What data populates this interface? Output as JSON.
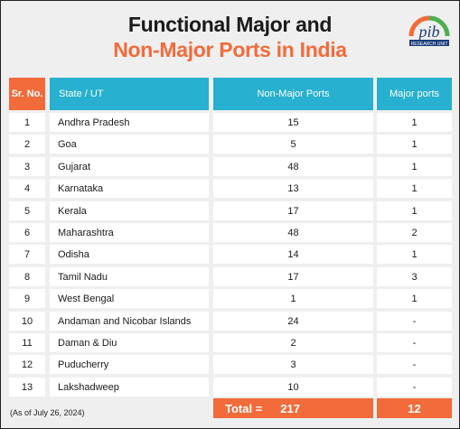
{
  "title": {
    "line1": "Functional Major and",
    "line2": "Non-Major Ports in India"
  },
  "logo": {
    "text": "pib",
    "subtext": "RESEARCH UNIT"
  },
  "table": {
    "headers": {
      "sr": "Sr. No.",
      "state": "State / UT",
      "non_major": "Non-Major Ports",
      "major": "Major ports"
    },
    "rows": [
      {
        "sr": "1",
        "state": "Andhra Pradesh",
        "non_major": "15",
        "major": "1"
      },
      {
        "sr": "2",
        "state": "Goa",
        "non_major": "5",
        "major": "1"
      },
      {
        "sr": "3",
        "state": "Gujarat",
        "non_major": "48",
        "major": "1"
      },
      {
        "sr": "4",
        "state": "Karnataka",
        "non_major": "13",
        "major": "1"
      },
      {
        "sr": "5",
        "state": "Kerala",
        "non_major": "17",
        "major": "1"
      },
      {
        "sr": "6",
        "state": "Maharashtra",
        "non_major": "48",
        "major": "2"
      },
      {
        "sr": "7",
        "state": "Odisha",
        "non_major": "14",
        "major": "1"
      },
      {
        "sr": "8",
        "state": "Tamil Nadu",
        "non_major": "17",
        "major": "3"
      },
      {
        "sr": "9",
        "state": "West Bengal",
        "non_major": "1",
        "major": "1"
      },
      {
        "sr": "10",
        "state": "Andaman and Nicobar Islands",
        "non_major": "24",
        "major": "-"
      },
      {
        "sr": "11",
        "state": "Daman & Diu",
        "non_major": "2",
        "major": "-"
      },
      {
        "sr": "12",
        "state": "Puducherry",
        "non_major": "3",
        "major": "-"
      },
      {
        "sr": "13",
        "state": "Lakshadweep",
        "non_major": "10",
        "major": "-"
      }
    ],
    "total": {
      "label": "Total =",
      "non_major": "217",
      "major": "12"
    }
  },
  "note": "(As of July 26, 2024)",
  "colors": {
    "accent_orange": "#f26b3a",
    "header_teal": "#27b0cf",
    "background": "#efefef"
  }
}
